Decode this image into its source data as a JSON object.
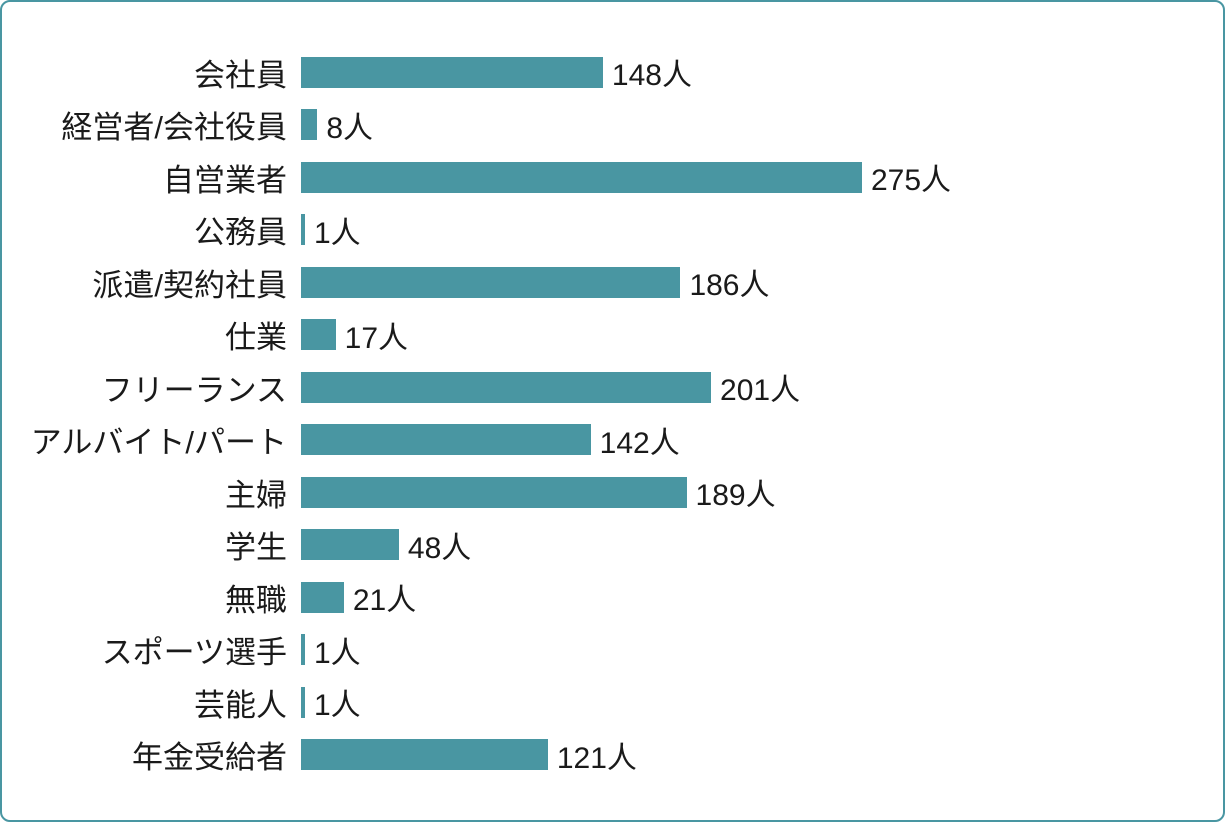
{
  "chart_data": {
    "type": "bar",
    "orientation": "horizontal",
    "title": "",
    "xlabel": "",
    "ylabel": "",
    "unit": "人",
    "categories": [
      "会社員",
      "経営者/会社役員",
      "自営業者",
      "公務員",
      "派遣/契約社員",
      "仕業",
      "フリーランス",
      "アルバイト/パート",
      "主婦",
      "学生",
      "無職",
      "スポーツ選手",
      "芸能人",
      "年金受給者"
    ],
    "values": [
      148,
      8,
      275,
      1,
      186,
      17,
      201,
      142,
      189,
      48,
      21,
      1,
      1,
      121
    ],
    "value_labels": [
      "148人",
      "8人",
      "275人",
      "1人",
      "186人",
      "17人",
      "201人",
      "142人",
      "189人",
      "48人",
      "21人",
      "1人",
      "1人",
      "121人"
    ],
    "max_value": 275,
    "xlim": [
      0,
      275
    ],
    "grid": false,
    "legend": false,
    "data_labels": true,
    "colors": {
      "bar": "#4996A2",
      "border": "#4996A2",
      "text": "#1a1a1a",
      "background": "#ffffff"
    }
  }
}
